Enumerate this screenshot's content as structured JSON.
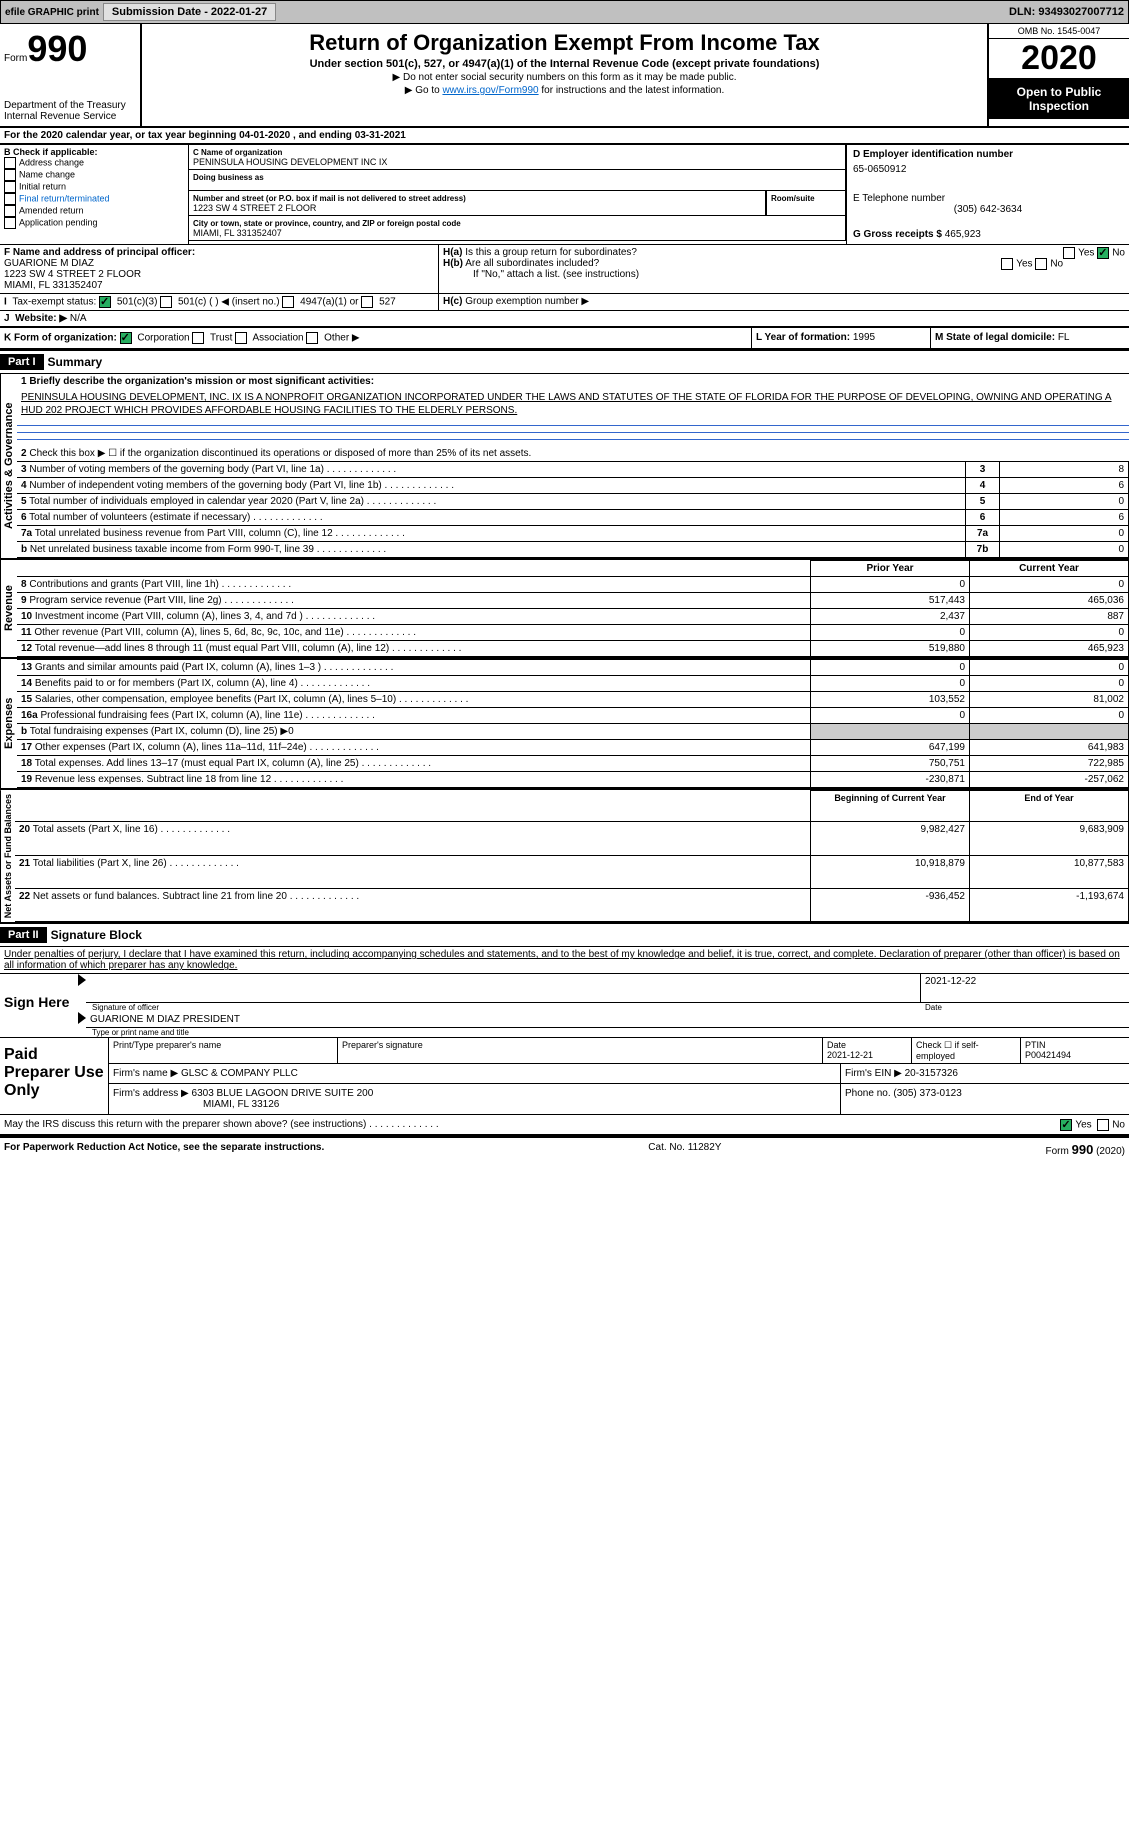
{
  "topbar": {
    "efile": "efile GRAPHIC print",
    "submission": "Submission Date - 2022-01-27",
    "dln": "DLN: 93493027007712"
  },
  "header": {
    "form": "Form",
    "num": "990",
    "dept": "Department of the Treasury Internal Revenue Service",
    "title": "Return of Organization Exempt From Income Tax",
    "sub": "Under section 501(c), 527, or 4947(a)(1) of the Internal Revenue Code (except private foundations)",
    "arrow1": "▶ Do not enter social security numbers on this form as it may be made public.",
    "arrow2": "▶ Go to ",
    "link": "www.irs.gov/Form990",
    "arrow2b": " for instructions and the latest information.",
    "omb": "OMB No. 1545-0047",
    "year": "2020",
    "open": "Open to Public Inspection"
  },
  "a": {
    "text": "For the 2020 calendar year, or tax year beginning 04-01-2020   , and ending 03-31-2021"
  },
  "b": {
    "title": "B Check if applicable:",
    "items": [
      "Address change",
      "Name change",
      "Initial return",
      "Final return/terminated",
      "Amended return",
      "Application pending"
    ]
  },
  "c": {
    "label": "C Name of organization",
    "name": "PENINSULA HOUSING DEVELOPMENT INC IX",
    "dba": "Doing business as",
    "street_label": "Number and street (or P.O. box if mail is not delivered to street address)",
    "room": "Room/suite",
    "street": "1223 SW 4 STREET 2 FLOOR",
    "city_label": "City or town, state or province, country, and ZIP or foreign postal code",
    "city": "MIAMI, FL  331352407"
  },
  "d": {
    "label": "D Employer identification number",
    "val": "65-0650912"
  },
  "e": {
    "label": "E Telephone number",
    "val": "(305) 642-3634"
  },
  "g": {
    "label": "G Gross receipts $",
    "val": "465,923"
  },
  "f": {
    "label": "F  Name and address of principal officer:",
    "name": "GUARIONE M DIAZ",
    "addr1": "1223 SW 4 STREET 2 FLOOR",
    "addr2": "MIAMI, FL  331352407"
  },
  "h": {
    "a": "Is this a group return for subordinates?",
    "b": "Are all subordinates included?",
    "c_note": "If \"No,\" attach a list. (see instructions)",
    "c": "Group exemption number ▶"
  },
  "i": {
    "label": "Tax-exempt status:",
    "opts": [
      "501(c)(3)",
      "501(c) (  ) ◀ (insert no.)",
      "4947(a)(1) or",
      "527"
    ]
  },
  "j": {
    "label": "Website: ▶",
    "val": "N/A"
  },
  "k": {
    "label": "K Form of organization:",
    "opts": [
      "Corporation",
      "Trust",
      "Association",
      "Other ▶"
    ]
  },
  "l": {
    "label": "L Year of formation:",
    "val": "1995"
  },
  "m": {
    "label": "M State of legal domicile:",
    "val": "FL"
  },
  "part1": {
    "header": "Part I",
    "title": "Summary"
  },
  "mission": {
    "label": "1  Briefly describe the organization's mission or most significant activities:",
    "text": "PENINSULA HOUSING DEVELOPMENT, INC. IX IS A NONPROFIT ORGANIZATION INCORPORATED UNDER THE LAWS AND STATUTES OF THE STATE OF FLORIDA FOR THE PURPOSE OF DEVELOPING, OWNING AND OPERATING A HUD 202 PROJECT WHICH PROVIDES AFFORDABLE HOUSING FACILITIES TO THE ELDERLY PERSONS."
  },
  "gov_side": "Activities & Governance",
  "gov_rows": [
    {
      "n": "2",
      "t": "Check this box ▶ ☐ if the organization discontinued its operations or disposed of more than 25% of its net assets."
    },
    {
      "n": "3",
      "t": "Number of voting members of the governing body (Part VI, line 1a)",
      "box": "3",
      "v": "8"
    },
    {
      "n": "4",
      "t": "Number of independent voting members of the governing body (Part VI, line 1b)",
      "box": "4",
      "v": "6"
    },
    {
      "n": "5",
      "t": "Total number of individuals employed in calendar year 2020 (Part V, line 2a)",
      "box": "5",
      "v": "0"
    },
    {
      "n": "6",
      "t": "Total number of volunteers (estimate if necessary)",
      "box": "6",
      "v": "6"
    },
    {
      "n": "7a",
      "t": "Total unrelated business revenue from Part VIII, column (C), line 12",
      "box": "7a",
      "v": "0"
    },
    {
      "n": "b",
      "t": "Net unrelated business taxable income from Form 990-T, line 39",
      "box": "7b",
      "v": "0"
    }
  ],
  "rev_side": "Revenue",
  "col_headers": {
    "py": "Prior Year",
    "cy": "Current Year"
  },
  "rev_rows": [
    {
      "n": "8",
      "t": "Contributions and grants (Part VIII, line 1h)",
      "py": "0",
      "cy": "0"
    },
    {
      "n": "9",
      "t": "Program service revenue (Part VIII, line 2g)",
      "py": "517,443",
      "cy": "465,036"
    },
    {
      "n": "10",
      "t": "Investment income (Part VIII, column (A), lines 3, 4, and 7d )",
      "py": "2,437",
      "cy": "887"
    },
    {
      "n": "11",
      "t": "Other revenue (Part VIII, column (A), lines 5, 6d, 8c, 9c, 10c, and 11e)",
      "py": "0",
      "cy": "0"
    },
    {
      "n": "12",
      "t": "Total revenue—add lines 8 through 11 (must equal Part VIII, column (A), line 12)",
      "py": "519,880",
      "cy": "465,923"
    }
  ],
  "exp_side": "Expenses",
  "exp_rows": [
    {
      "n": "13",
      "t": "Grants and similar amounts paid (Part IX, column (A), lines 1–3 )",
      "py": "0",
      "cy": "0"
    },
    {
      "n": "14",
      "t": "Benefits paid to or for members (Part IX, column (A), line 4)",
      "py": "0",
      "cy": "0"
    },
    {
      "n": "15",
      "t": "Salaries, other compensation, employee benefits (Part IX, column (A), lines 5–10)",
      "py": "103,552",
      "cy": "81,002"
    },
    {
      "n": "16a",
      "t": "Professional fundraising fees (Part IX, column (A), line 11e)",
      "py": "0",
      "cy": "0"
    },
    {
      "n": "b",
      "t": "Total fundraising expenses (Part IX, column (D), line 25) ▶0",
      "py": "",
      "cy": ""
    },
    {
      "n": "17",
      "t": "Other expenses (Part IX, column (A), lines 11a–11d, 11f–24e)",
      "py": "647,199",
      "cy": "641,983"
    },
    {
      "n": "18",
      "t": "Total expenses. Add lines 13–17 (must equal Part IX, column (A), line 25)",
      "py": "750,751",
      "cy": "722,985"
    },
    {
      "n": "19",
      "t": "Revenue less expenses. Subtract line 18 from line 12",
      "py": "-230,871",
      "cy": "-257,062"
    }
  ],
  "net_side": "Net Assets or Fund Balances",
  "net_headers": {
    "b": "Beginning of Current Year",
    "e": "End of Year"
  },
  "net_rows": [
    {
      "n": "20",
      "t": "Total assets (Part X, line 16)",
      "py": "9,982,427",
      "cy": "9,683,909"
    },
    {
      "n": "21",
      "t": "Total liabilities (Part X, line 26)",
      "py": "10,918,879",
      "cy": "10,877,583"
    },
    {
      "n": "22",
      "t": "Net assets or fund balances. Subtract line 21 from line 20",
      "py": "-936,452",
      "cy": "-1,193,674"
    }
  ],
  "part2": {
    "header": "Part II",
    "title": "Signature Block"
  },
  "perjury": "Under penalties of perjury, I declare that I have examined this return, including accompanying schedules and statements, and to the best of my knowledge and belief, it is true, correct, and complete. Declaration of preparer (other than officer) is based on all information of which preparer has any knowledge.",
  "sign": {
    "here": "Sign Here",
    "sig_label": "Signature of officer",
    "date": "2021-12-22",
    "date_label": "Date",
    "name": "GUARIONE M DIAZ  PRESIDENT",
    "name_label": "Type or print name and title"
  },
  "paid": {
    "title": "Paid Preparer Use Only",
    "h1": "Print/Type preparer's name",
    "h2": "Preparer's signature",
    "h3": "Date",
    "h3v": "2021-12-21",
    "h4": "Check ☐ if self-employed",
    "h5": "PTIN",
    "h5v": "P00421494",
    "firm_name_label": "Firm's name   ▶",
    "firm_name": "GLSC & COMPANY PLLC",
    "ein_label": "Firm's EIN ▶",
    "ein": "20-3157326",
    "firm_addr_label": "Firm's address ▶",
    "firm_addr": "6303 BLUE LAGOON DRIVE SUITE 200",
    "firm_city": "MIAMI, FL  33126",
    "phone_label": "Phone no.",
    "phone": "(305) 373-0123"
  },
  "discuss": "May the IRS discuss this return with the preparer shown above? (see instructions)",
  "footer": {
    "pra": "For Paperwork Reduction Act Notice, see the separate instructions.",
    "cat": "Cat. No. 11282Y",
    "form": "Form 990 (2020)"
  }
}
